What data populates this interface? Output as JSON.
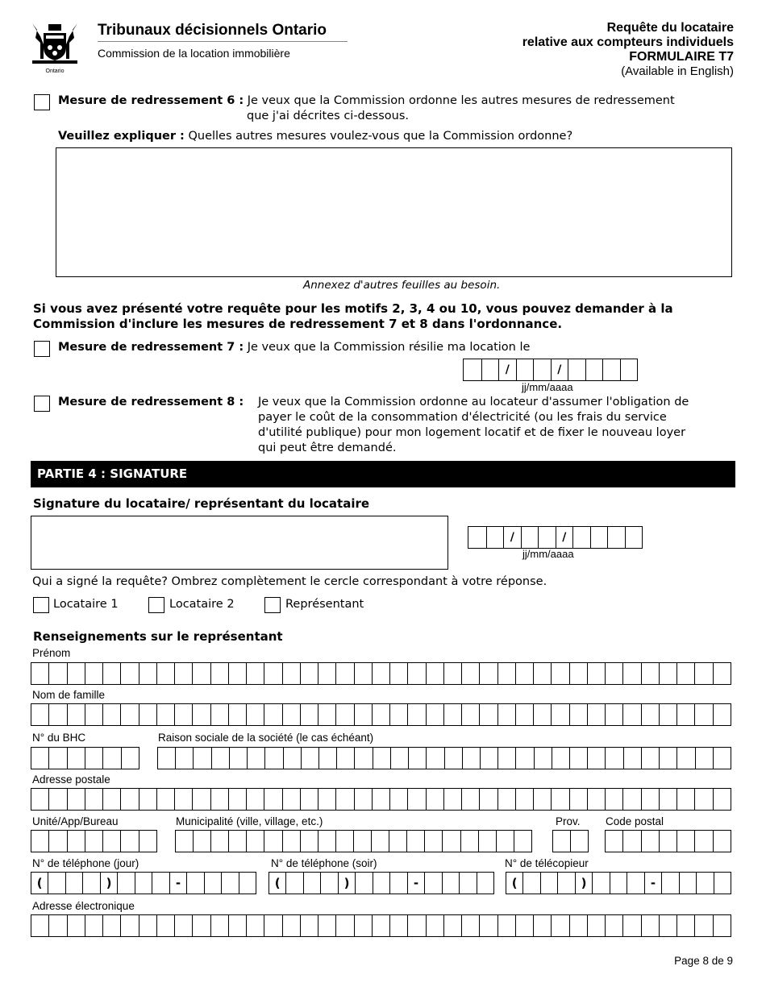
{
  "header": {
    "org": "Tribunaux décisionnels Ontario",
    "board": "Commission de la location immobilière",
    "logo_text": "Ontario",
    "form_title_1": "Requête du locataire",
    "form_title_2": "relative aux compteurs individuels",
    "form_number": "FORMULAIRE T7",
    "available": "(Available in English)"
  },
  "remedy6": {
    "label": "Mesure de redressement 6 :",
    "text1": "Je veux que la Commission ordonne les autres mesures de redressement",
    "text2": "que j'ai décrites ci-dessous.",
    "explain_label": "Veuillez expliquer :",
    "explain_text": "Quelles autres mesures voulez-vous que la Commission ordonne?",
    "attach_note": "Annexez d'autres feuilles au besoin."
  },
  "notice": {
    "line1": "Si vous avez présenté votre requête pour les motifs 2, 3, 4 ou 10, vous pouvez demander à la",
    "line2": "Commission d'inclure les mesures de redressement 7 et 8 dans l'ordonnance."
  },
  "remedy7": {
    "label": "Mesure de redressement 7 :",
    "text": "Je veux que la Commission résilie ma location le",
    "date_format": "jj/mm/aaaa"
  },
  "remedy8": {
    "label": "Mesure de redressement 8 :",
    "lines": [
      "Je veux que la Commission ordonne au locateur d'assumer l'obligation de",
      "payer le coût de la consommation d'électricité (ou les frais du service",
      "d'utilité publique) pour mon logement locatif et de fixer le nouveau loyer",
      "qui peut être demandé."
    ]
  },
  "part4": {
    "title": "PARTIE 4 : SIGNATURE",
    "sig_label": "Signature du locataire/ représentant du locataire",
    "date_format": "jj/mm/aaaa",
    "who_signed": "Qui a signé la requête? Ombrez complètement le cercle correspondant à votre réponse.",
    "options": [
      "Locataire 1",
      "Locataire 2",
      "Représentant"
    ]
  },
  "rep": {
    "title": "Renseignements sur le représentant",
    "first_name": "Prénom",
    "last_name": "Nom de famille",
    "lso": "N° du BHC",
    "company": "Raison sociale de la société (le cas échéant)",
    "address": "Adresse postale",
    "unit": "Unité/App/Bureau",
    "municipality": "Municipalité (ville, village, etc.)",
    "prov": "Prov.",
    "postal": "Code postal",
    "phone_day": "N° de téléphone (jour)",
    "phone_eve": "N° de téléphone (soir)",
    "fax": "N° de télécopieur",
    "email": "Adresse électronique"
  },
  "footer": {
    "page": "Page 8 de 9"
  }
}
